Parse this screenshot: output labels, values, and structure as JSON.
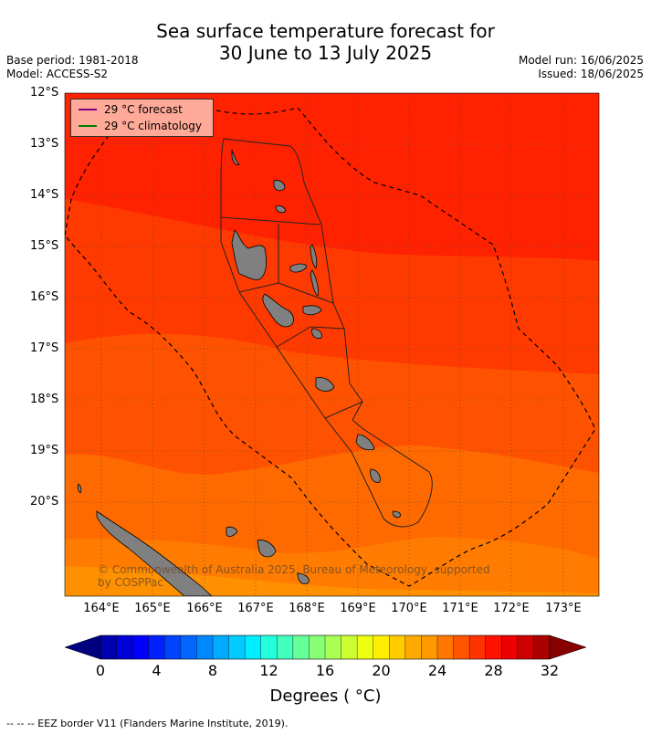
{
  "title_line1": "Sea surface temperature forecast for",
  "title_line2": "30 June to 13 July 2025",
  "base_period": "Base period: 1981-2018",
  "model": "Model: ACCESS-S2",
  "model_run": "Model run: 16/06/2025",
  "issued": "Issued: 18/06/2025",
  "lat_labels": [
    "12°S",
    "13°S",
    "14°S",
    "15°S",
    "16°S",
    "17°S",
    "18°S",
    "19°S",
    "20°S"
  ],
  "lon_labels": [
    "164°E",
    "165°E",
    "166°E",
    "167°E",
    "168°E",
    "169°E",
    "170°E",
    "171°E",
    "172°E",
    "173°E"
  ],
  "legend": {
    "forecast_label": "29 °C  forecast",
    "forecast_color": "#800080",
    "climatology_label": "29 °C  climatology",
    "climatology_color": "#008000"
  },
  "copyright_line1": "© Commonwealth of Australia 2025, Bureau of Meteorology, supported",
  "copyright_line2": "by COSPPac",
  "colorbar": {
    "ticks": [
      "0",
      "4",
      "8",
      "12",
      "16",
      "20",
      "24",
      "28",
      "32"
    ],
    "label": "Degrees ( °C)",
    "colors": [
      "#000080",
      "#0000b0",
      "#0000d8",
      "#0000ff",
      "#0020ff",
      "#0044ff",
      "#0066ff",
      "#0088ff",
      "#00aaff",
      "#00ccff",
      "#00eeff",
      "#22ffdd",
      "#44ffbb",
      "#66ff99",
      "#88ff77",
      "#aaff55",
      "#ccff33",
      "#eeff11",
      "#ffee00",
      "#ffcc00",
      "#ffaa00",
      "#ff9900",
      "#ff7700",
      "#ff5500",
      "#ff3300",
      "#ff1100",
      "#ee0000",
      "#cc0000",
      "#aa0000",
      "#880000"
    ]
  },
  "footer": "--  --  -- EEZ border V11 (Flanders Marine Institute, 2019).",
  "sst_bands": [
    "#ff2200",
    "#ff3a00",
    "#ff5200",
    "#ff6a00",
    "#ff7c00",
    "#ff9000"
  ]
}
